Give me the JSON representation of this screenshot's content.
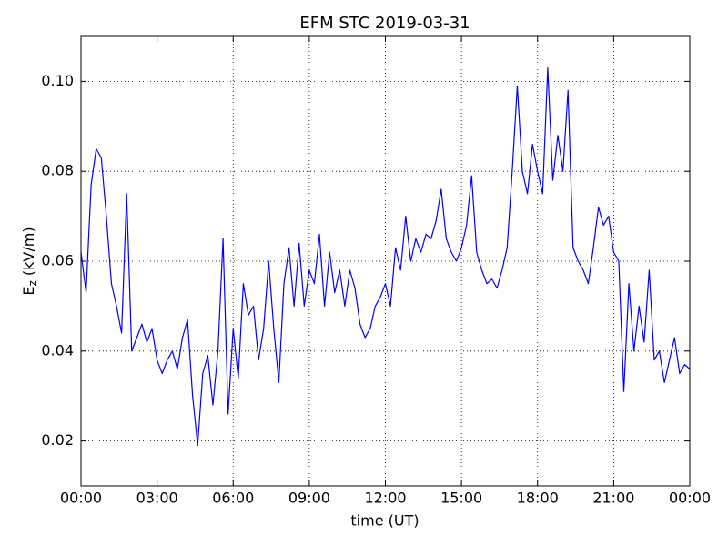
{
  "chart_data": {
    "type": "line",
    "title": "EFM STC    2019-03-31",
    "xlabel": "time (UT)",
    "ylabel": {
      "main": "E",
      "sub": "z",
      "unit": " (kV/m)"
    },
    "x": [
      0,
      0.2,
      0.4,
      0.6,
      0.8,
      1,
      1.2,
      1.4,
      1.6,
      1.8,
      2,
      2.2,
      2.4,
      2.6,
      2.8,
      3,
      3.2,
      3.4,
      3.6,
      3.8,
      4,
      4.2,
      4.4,
      4.6,
      4.8,
      5,
      5.2,
      5.4,
      5.6,
      5.8,
      6,
      6.2,
      6.4,
      6.6,
      6.8,
      7,
      7.2,
      7.4,
      7.6,
      7.8,
      8,
      8.2,
      8.4,
      8.6,
      8.8,
      9,
      9.2,
      9.4,
      9.6,
      9.8,
      10,
      10.2,
      10.4,
      10.6,
      10.8,
      11,
      11.2,
      11.4,
      11.6,
      11.8,
      12,
      12.2,
      12.4,
      12.6,
      12.8,
      13,
      13.2,
      13.4,
      13.6,
      13.8,
      14,
      14.2,
      14.4,
      14.6,
      14.8,
      15,
      15.2,
      15.4,
      15.6,
      15.8,
      16,
      16.2,
      16.4,
      16.6,
      16.8,
      17,
      17.2,
      17.4,
      17.6,
      17.8,
      18,
      18.2,
      18.4,
      18.6,
      18.8,
      19,
      19.2,
      19.4,
      19.6,
      19.8,
      20,
      20.2,
      20.4,
      20.6,
      20.8,
      21,
      21.2,
      21.4,
      21.6,
      21.8,
      22,
      22.2,
      22.4,
      22.6,
      22.8,
      23,
      23.2,
      23.4,
      23.6,
      23.8,
      24
    ],
    "series": [
      {
        "name": "Ez",
        "color": "#0000ff",
        "values": [
          0.062,
          0.053,
          0.077,
          0.085,
          0.083,
          0.07,
          0.055,
          0.05,
          0.044,
          0.075,
          0.04,
          0.043,
          0.046,
          0.042,
          0.045,
          0.038,
          0.035,
          0.038,
          0.04,
          0.036,
          0.043,
          0.047,
          0.03,
          0.019,
          0.035,
          0.039,
          0.028,
          0.04,
          0.065,
          0.026,
          0.045,
          0.034,
          0.055,
          0.048,
          0.05,
          0.038,
          0.045,
          0.06,
          0.045,
          0.033,
          0.055,
          0.063,
          0.05,
          0.064,
          0.05,
          0.058,
          0.055,
          0.066,
          0.05,
          0.062,
          0.053,
          0.058,
          0.05,
          0.058,
          0.054,
          0.046,
          0.043,
          0.045,
          0.05,
          0.052,
          0.055,
          0.05,
          0.063,
          0.058,
          0.07,
          0.06,
          0.065,
          0.062,
          0.066,
          0.065,
          0.069,
          0.076,
          0.065,
          0.062,
          0.06,
          0.063,
          0.068,
          0.079,
          0.062,
          0.058,
          0.055,
          0.056,
          0.054,
          0.058,
          0.063,
          0.08,
          0.099,
          0.08,
          0.075,
          0.086,
          0.08,
          0.075,
          0.103,
          0.078,
          0.088,
          0.08,
          0.098,
          0.063,
          0.06,
          0.058,
          0.055,
          0.063,
          0.072,
          0.068,
          0.07,
          0.062,
          0.06,
          0.031,
          0.055,
          0.04,
          0.05,
          0.042,
          0.058,
          0.038,
          0.04,
          0.033,
          0.038,
          0.043,
          0.035,
          0.037,
          0.036
        ]
      }
    ],
    "xlim": [
      0,
      24
    ],
    "xticks": [
      {
        "value": 0,
        "label": "00:00"
      },
      {
        "value": 3,
        "label": "03:00"
      },
      {
        "value": 6,
        "label": "06:00"
      },
      {
        "value": 9,
        "label": "09:00"
      },
      {
        "value": 12,
        "label": "12:00"
      },
      {
        "value": 15,
        "label": "15:00"
      },
      {
        "value": 18,
        "label": "18:00"
      },
      {
        "value": 21,
        "label": "21:00"
      },
      {
        "value": 24,
        "label": "00:00"
      }
    ],
    "ylim": [
      0.01,
      0.11
    ],
    "yticks": [
      0.02,
      0.04,
      0.06,
      0.08,
      {
        "value": 0.1,
        "label": "0.10"
      }
    ],
    "grid": true
  }
}
